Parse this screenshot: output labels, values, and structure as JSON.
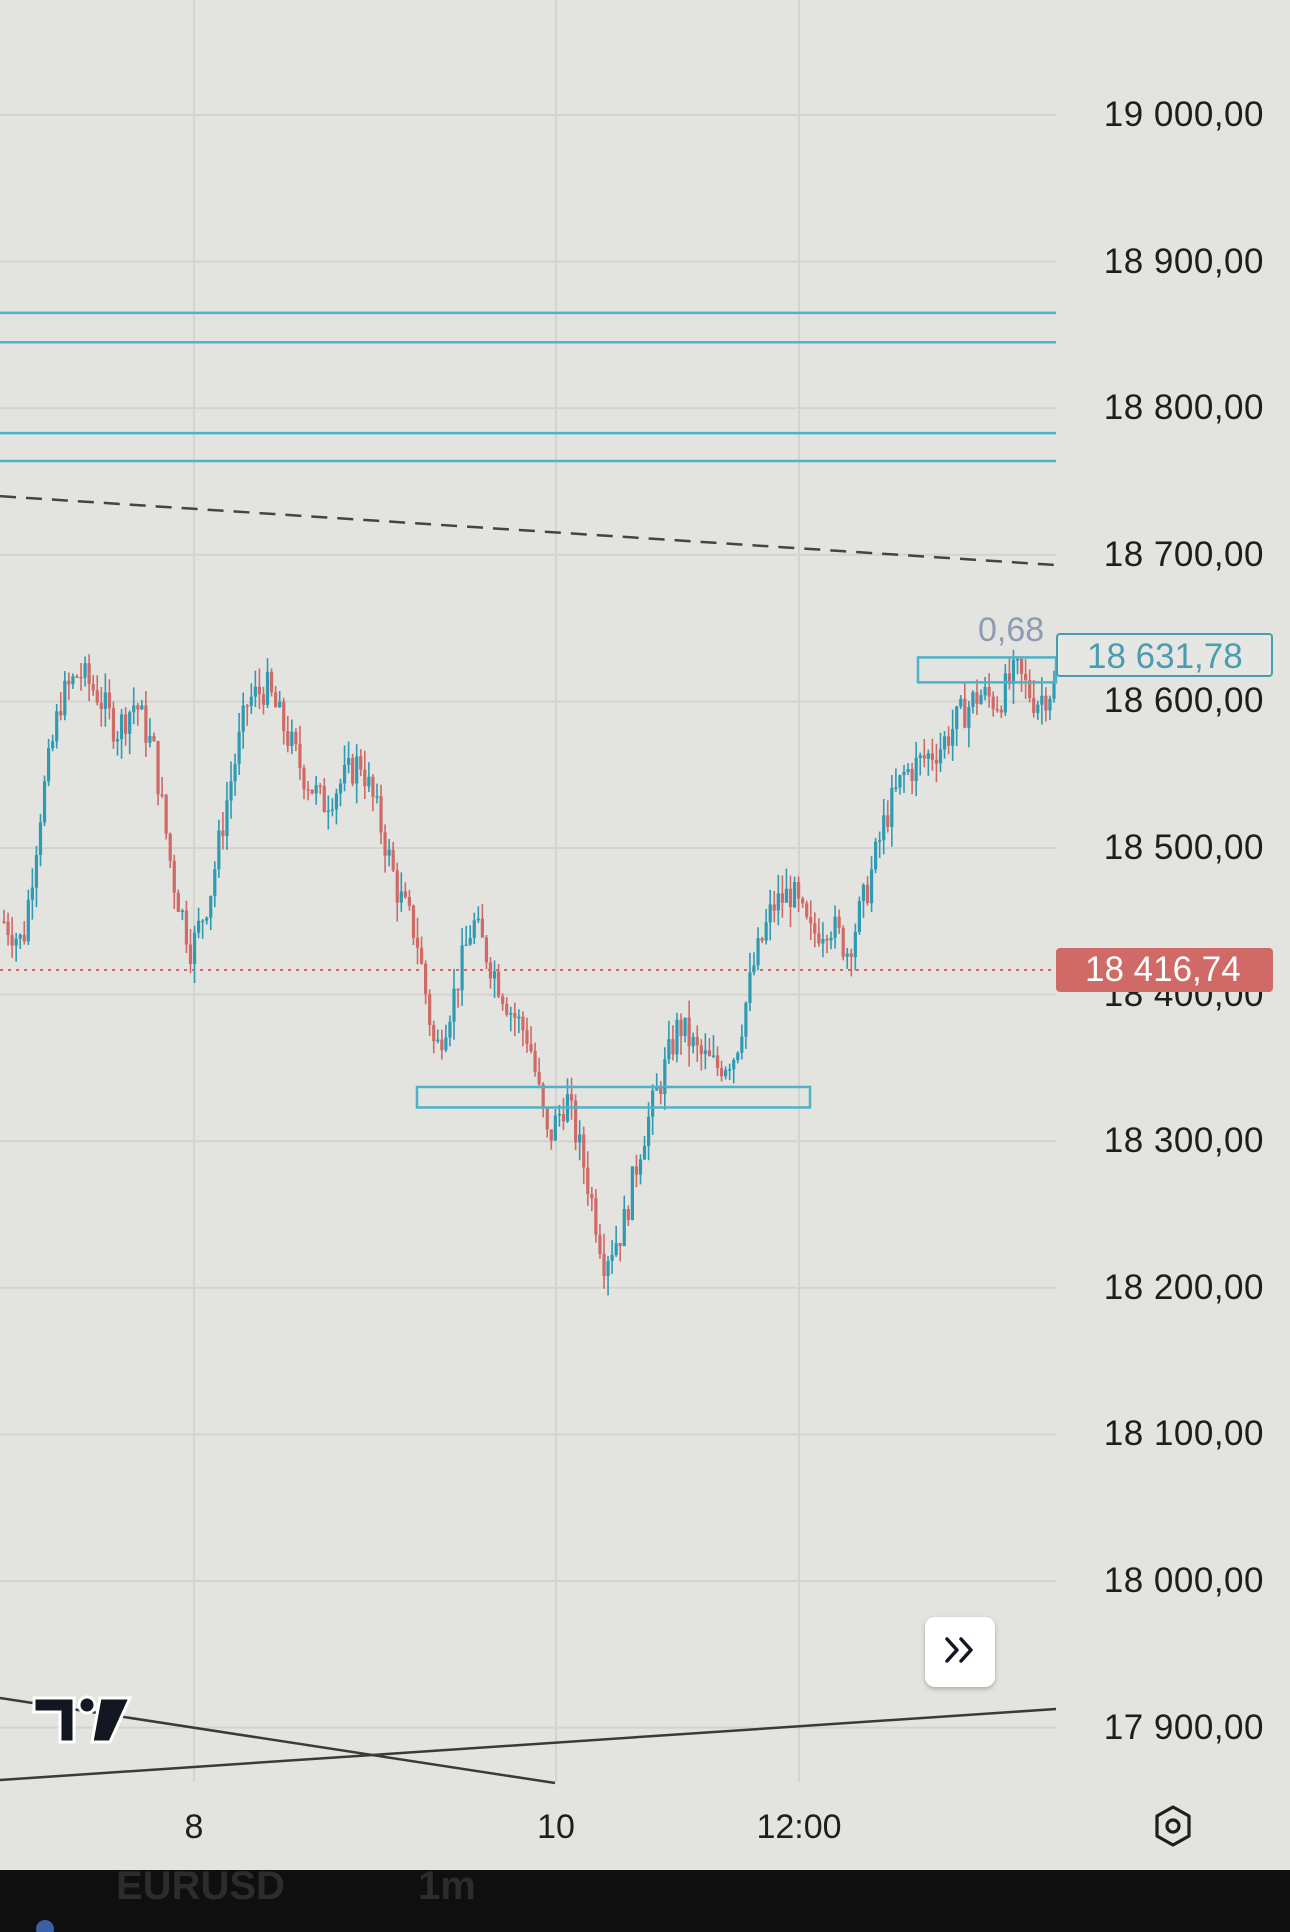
{
  "colors": {
    "background": "#e3e3df",
    "up_candle": "#2e9bb3",
    "down_candle": "#cf6a66",
    "grid": "#d3d3cf",
    "zone_line": "#4db3c7",
    "current_price": "#cf6a66"
  },
  "chart_data": {
    "type": "candlestick",
    "y_axis_ticks": [
      "19 000,00",
      "18 900,00",
      "18 800,00",
      "18 700,00",
      "18 600,00",
      "18 500,00",
      "18 400,00",
      "18 300,00",
      "18 200,00",
      "18 100,00",
      "18 000,00",
      "17 900,00"
    ],
    "x_axis_ticks": [
      "8",
      "10",
      "12:00"
    ],
    "ylim": [
      17860,
      19080
    ],
    "current_price_label": "18 416,74",
    "current_price": 18416.74,
    "level_label": "18 631,78",
    "level_price": 18631.78,
    "measure_label": "0,68",
    "horizontal_levels": [
      18865,
      18845,
      18783,
      18764
    ],
    "dashed_trendline": {
      "from_price": 18740,
      "to_price": 18693
    },
    "zones": [
      {
        "from_price": 18337,
        "to_price": 18323,
        "label": ""
      },
      {
        "from_price": 18630,
        "to_price": 18613,
        "label": ""
      }
    ],
    "close_path": [
      18450,
      18435,
      18530,
      18600,
      18620,
      18605,
      18580,
      18600,
      18565,
      18480,
      18430,
      18470,
      18540,
      18600,
      18610,
      18580,
      18550,
      18530,
      18545,
      18560,
      18520,
      18470,
      18440,
      18360,
      18400,
      18450,
      18420,
      18390,
      18370,
      18300,
      18330,
      18280,
      18220,
      18240,
      18300,
      18340,
      18380,
      18360,
      18350,
      18360,
      18420,
      18460,
      18470,
      18440,
      18450,
      18430,
      18470,
      18520,
      18550,
      18560,
      18570,
      18590,
      18605,
      18600,
      18620,
      18600,
      18610
    ]
  },
  "toolbar": {
    "forward_label": "»",
    "settings_icon": "gear-icon",
    "logo_name": "TradingView"
  },
  "bottom_bar": {
    "symbol_text": "EURUSD",
    "interval_text": "1m"
  }
}
